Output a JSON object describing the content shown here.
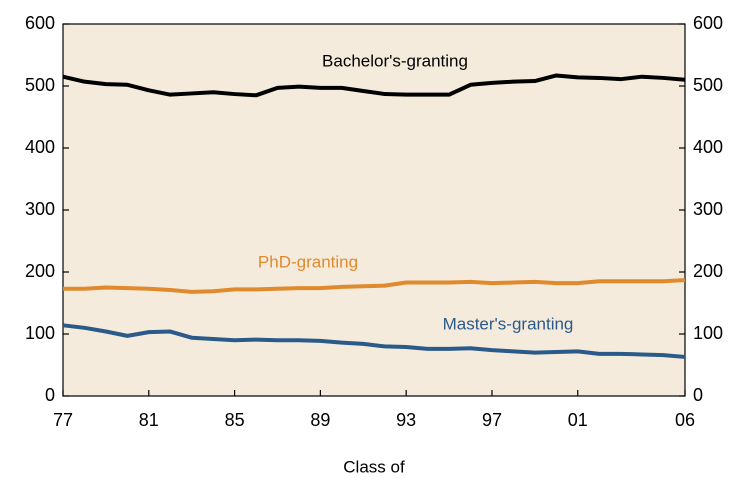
{
  "chart_data": {
    "type": "line",
    "x_label": "Class of",
    "x": [
      1977,
      1978,
      1979,
      1980,
      1981,
      1982,
      1983,
      1984,
      1985,
      1986,
      1987,
      1988,
      1989,
      1990,
      1991,
      1992,
      1993,
      1994,
      1995,
      1996,
      1997,
      1998,
      1999,
      2000,
      2001,
      2002,
      2003,
      2004,
      2005,
      2006
    ],
    "series": [
      {
        "name": "Bachelor's-granting",
        "color": "#000000",
        "values": [
          515,
          507,
          503,
          502,
          493,
          486,
          488,
          490,
          487,
          485,
          497,
          499,
          497,
          497,
          492,
          487,
          486,
          486,
          486,
          502,
          505,
          507,
          508,
          517,
          514,
          513,
          511,
          515,
          513,
          510
        ]
      },
      {
        "name": "PhD-granting",
        "color": "#e08a2e",
        "values": [
          173,
          173,
          175,
          174,
          173,
          171,
          168,
          169,
          172,
          172,
          173,
          174,
          174,
          176,
          177,
          178,
          183,
          183,
          183,
          184,
          182,
          183,
          184,
          182,
          182,
          185,
          185,
          185,
          185,
          187
        ]
      },
      {
        "name": "Master's-granting",
        "color": "#2b5a8a",
        "values": [
          114,
          110,
          104,
          97,
          103,
          104,
          94,
          92,
          90,
          91,
          90,
          90,
          89,
          86,
          84,
          80,
          79,
          76,
          76,
          77,
          74,
          72,
          70,
          71,
          72,
          68,
          68,
          67,
          66,
          63
        ]
      }
    ],
    "xlim": [
      1977,
      2006
    ],
    "xticks": [
      {
        "value": 1977,
        "label": "77"
      },
      {
        "value": 1981,
        "label": "81"
      },
      {
        "value": 1985,
        "label": "85"
      },
      {
        "value": 1989,
        "label": "89"
      },
      {
        "value": 1993,
        "label": "93"
      },
      {
        "value": 1997,
        "label": "97"
      },
      {
        "value": 2001,
        "label": "01"
      },
      {
        "value": 2006,
        "label": "06"
      }
    ],
    "ylim": [
      0,
      600
    ],
    "yticks": [
      0,
      100,
      200,
      300,
      400,
      500,
      600
    ],
    "y2lim": [
      0,
      600
    ],
    "y2ticks": [
      0,
      100,
      200,
      300,
      400,
      500,
      600
    ],
    "background": "#f5ebdc"
  }
}
